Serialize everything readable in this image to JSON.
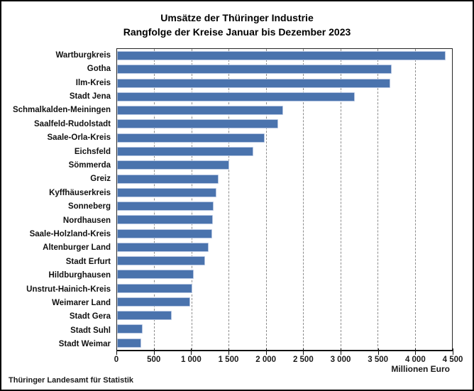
{
  "footer": "Thüringer Landesamt für Statistik",
  "chart_data": {
    "type": "bar",
    "orientation": "horizontal",
    "title": "Umsätze der Thüringer Industrie",
    "subtitle": "Rangfolge der Kreise Januar bis Dezember 2023",
    "unit_label": "Millionen Euro",
    "xlim": [
      0,
      4500
    ],
    "x_ticks": [
      0,
      500,
      1000,
      1500,
      2000,
      2500,
      3000,
      3500,
      4000,
      4500
    ],
    "x_tick_labels": [
      "0",
      "500",
      "1 000",
      "1 500",
      "2 000",
      "2 500",
      "3 000",
      "3 500",
      "4 000",
      "4 500"
    ],
    "grid": "vertical-dashed",
    "legend": "none",
    "bar_color": "#4a73ad",
    "bar_border_color": "#b6c6e2",
    "categories": [
      "Wartburgkreis",
      "Gotha",
      "Ilm-Kreis",
      "Stadt Jena",
      "Schmalkalden-Meiningen",
      "Saalfeld-Rudolstadt",
      "Saale-Orla-Kreis",
      "Eichsfeld",
      "Sömmerda",
      "Greiz",
      "Kyffhäuserkreis",
      "Sonneberg",
      "Nordhausen",
      "Saale-Holzland-Kreis",
      "Altenburger Land",
      "Stadt Erfurt",
      "Hildburghausen",
      "Unstrut-Hainich-Kreis",
      "Weimarer Land",
      "Stadt Gera",
      "Stadt Suhl",
      "Stadt Weimar"
    ],
    "values": [
      4410,
      3690,
      3675,
      3190,
      2230,
      2165,
      1985,
      1835,
      1505,
      1360,
      1330,
      1295,
      1290,
      1275,
      1230,
      1185,
      1030,
      1010,
      985,
      730,
      340,
      325
    ]
  }
}
